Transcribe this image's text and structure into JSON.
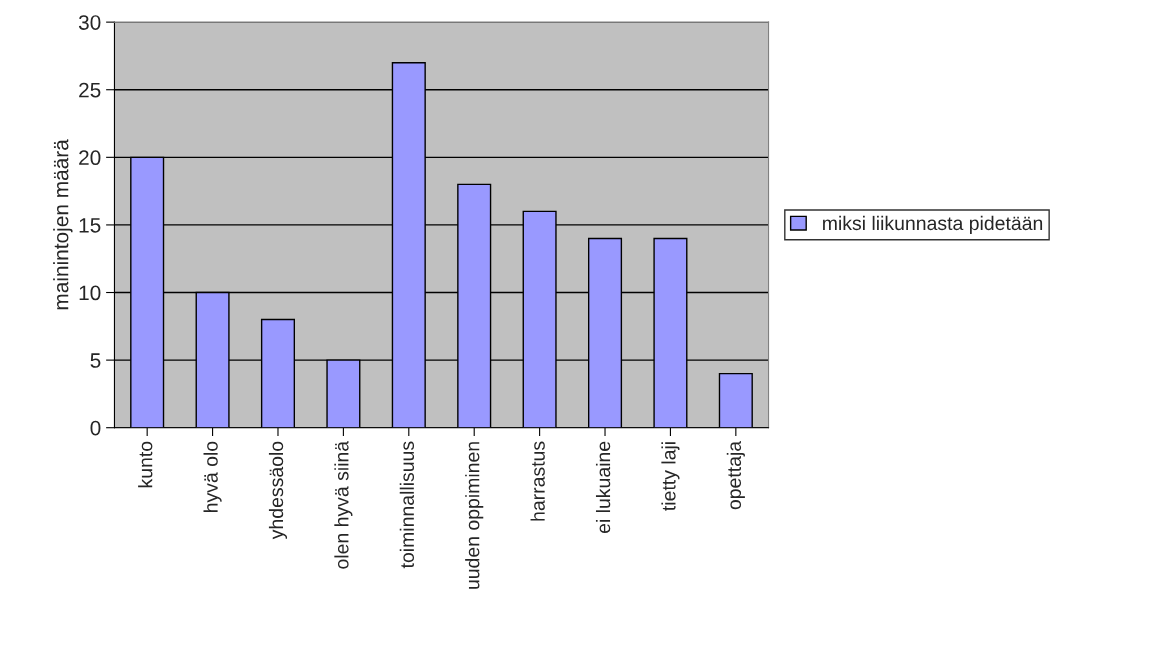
{
  "chart_data": {
    "type": "bar",
    "ylabel": "mainintojen määrä",
    "categories": [
      "kunto",
      "hyvä olo",
      "yhdessäolo",
      "olen hyvä siinä",
      "toiminnallisuus",
      "uuden oppiminen",
      "harrastus",
      "ei lukuaine",
      "tietty laji",
      "opettaja"
    ],
    "series": [
      {
        "name": "miksi liikunnasta pidetään",
        "color": "#9999ff",
        "values": [
          20,
          10,
          8,
          5,
          27,
          18,
          16,
          14,
          14,
          4
        ]
      }
    ],
    "ylim": [
      0,
      30
    ],
    "yticks": [
      0,
      5,
      10,
      15,
      20,
      25,
      30
    ],
    "grid": "y",
    "legend": "right"
  }
}
